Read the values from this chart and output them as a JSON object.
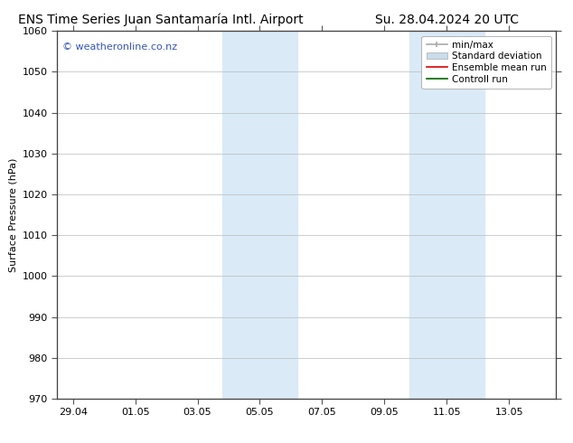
{
  "title_left": "ENS Time Series Juan Santamaría Intl. Airport",
  "title_right": "Su. 28.04.2024 20 UTC",
  "ylabel": "Surface Pressure (hPa)",
  "ylim": [
    970,
    1060
  ],
  "yticks": [
    970,
    980,
    990,
    1000,
    1010,
    1020,
    1030,
    1040,
    1050,
    1060
  ],
  "xtick_labels": [
    "29.04",
    "01.05",
    "03.05",
    "05.05",
    "07.05",
    "09.05",
    "11.05",
    "13.05"
  ],
  "xtick_positions": [
    0,
    2,
    4,
    6,
    8,
    10,
    12,
    14
  ],
  "xmin": -0.5,
  "xmax": 15.5,
  "shaded_bands": [
    {
      "xstart": 5.0,
      "xend": 5.7,
      "color": "#daeaf7"
    },
    {
      "xstart": 5.7,
      "xend": 7.0,
      "color": "#daeaf7"
    },
    {
      "xstart": 11.0,
      "xend": 11.7,
      "color": "#daeaf7"
    },
    {
      "xstart": 11.7,
      "xend": 13.0,
      "color": "#daeaf7"
    }
  ],
  "watermark_text": "© weatheronline.co.nz",
  "watermark_color": "#3355bb",
  "watermark_fontsize": 8,
  "legend_labels": [
    "min/max",
    "Standard deviation",
    "Ensemble mean run",
    "Controll run"
  ],
  "legend_line_color": "#aaaaaa",
  "legend_std_color": "#c8dcea",
  "legend_ens_color": "#dd0000",
  "legend_ctrl_color": "#006600",
  "background_color": "#ffffff",
  "grid_color": "#bbbbbb",
  "title_fontsize": 10,
  "axis_label_fontsize": 8,
  "tick_fontsize": 8,
  "legend_fontsize": 7.5
}
